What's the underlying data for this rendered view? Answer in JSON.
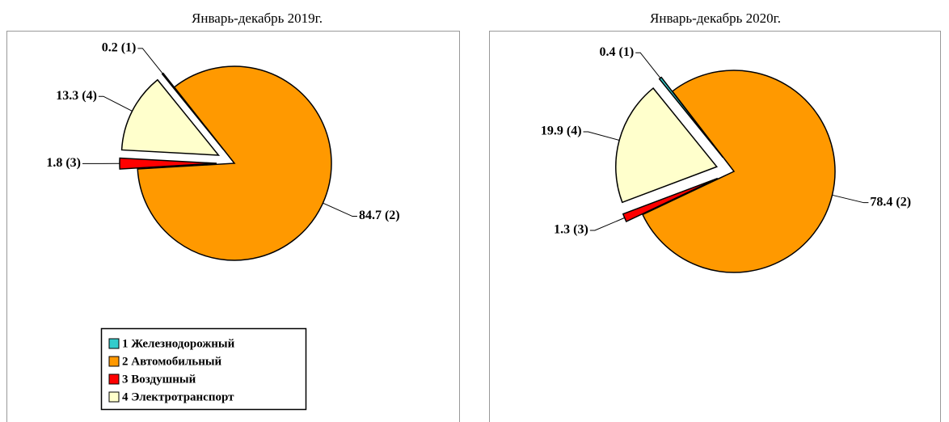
{
  "legend": {
    "labels": [
      "1 Железнодорожный",
      "2 Автомобильный",
      "3 Воздушный",
      "4 Электротранспорт"
    ],
    "colors": [
      "#33cccc",
      "#ff9900",
      "#ff0000",
      "#ffffcc"
    ]
  },
  "chart_data": [
    {
      "type": "pie",
      "title": "Январь-декабрь 2019г.",
      "values": [
        0.2,
        84.7,
        1.8,
        13.3
      ],
      "value_labels": [
        "0.2 (1)",
        "84.7 (2)",
        "1.8 (3)",
        "13.3 (4)"
      ]
    },
    {
      "type": "pie",
      "title": "Январь-декабрь 2020г.",
      "values": [
        0.4,
        78.4,
        1.3,
        19.9
      ],
      "value_labels": [
        "0.4 (1)",
        "78.4 (2)",
        "1.3 (3)",
        "19.9 (4)"
      ]
    }
  ]
}
